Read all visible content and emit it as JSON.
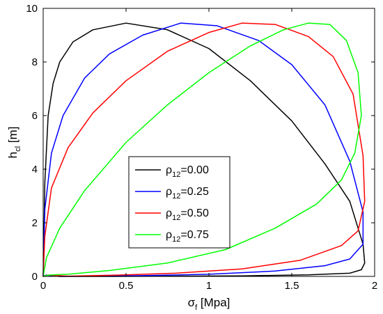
{
  "chart_data": {
    "type": "line",
    "xlabel": {
      "base": "σ",
      "sub": "f",
      "rest": " [Mpa]"
    },
    "ylabel": {
      "base": "h",
      "sub": "cl",
      "rest": " [m]"
    },
    "xlim": [
      0,
      2
    ],
    "ylim": [
      0,
      10
    ],
    "xticks": [
      "0",
      "0.5",
      "1",
      "1.5",
      "2"
    ],
    "xtick_values": [
      0,
      0.5,
      1,
      1.5,
      2
    ],
    "yticks": [
      "0",
      "2",
      "4",
      "6",
      "8",
      "10"
    ],
    "ytick_values": [
      0,
      2,
      4,
      6,
      8,
      10
    ],
    "grid": false,
    "legend_position": "lower-center",
    "series": [
      {
        "name": {
          "base": "ρ",
          "sub": "12",
          "rest": "=0.00"
        },
        "color": "#000000",
        "x": [
          0.0,
          0.01,
          0.03,
          0.06,
          0.1,
          0.18,
          0.3,
          0.5,
          0.75,
          1.0,
          1.25,
          1.5,
          1.7,
          1.85,
          1.93,
          1.94,
          1.92,
          1.85,
          1.6,
          1.2,
          0.8,
          0.4,
          0.1,
          0.02,
          0.0
        ],
        "y": [
          0.0,
          3.5,
          6.0,
          7.2,
          8.0,
          8.75,
          9.2,
          9.45,
          9.2,
          8.5,
          7.3,
          5.8,
          4.2,
          2.8,
          1.2,
          0.5,
          0.25,
          0.12,
          0.06,
          0.02,
          0.01,
          0.0,
          0.0,
          0.05,
          0.0
        ]
      },
      {
        "name": {
          "base": "ρ",
          "sub": "12",
          "rest": "=0.25"
        },
        "color": "#0000ff",
        "x": [
          0.0,
          0.01,
          0.05,
          0.12,
          0.25,
          0.4,
          0.6,
          0.83,
          1.05,
          1.3,
          1.5,
          1.7,
          1.85,
          1.93,
          1.93,
          1.85,
          1.7,
          1.4,
          1.0,
          0.6,
          0.3,
          0.1,
          0.02,
          0.0
        ],
        "y": [
          0.0,
          2.5,
          4.6,
          6.0,
          7.4,
          8.3,
          9.0,
          9.45,
          9.35,
          8.8,
          7.9,
          6.4,
          4.3,
          2.4,
          1.2,
          0.65,
          0.4,
          0.2,
          0.08,
          0.03,
          0.01,
          0.0,
          0.05,
          0.0
        ]
      },
      {
        "name": {
          "base": "ρ",
          "sub": "12",
          "rest": "=0.50"
        },
        "color": "#ff0000",
        "x": [
          0.0,
          0.01,
          0.05,
          0.15,
          0.3,
          0.5,
          0.75,
          1.0,
          1.2,
          1.4,
          1.6,
          1.75,
          1.87,
          1.93,
          1.94,
          1.9,
          1.8,
          1.55,
          1.2,
          0.8,
          0.45,
          0.15,
          0.03,
          0.0
        ],
        "y": [
          0.0,
          1.5,
          3.3,
          4.8,
          6.1,
          7.3,
          8.4,
          9.1,
          9.45,
          9.4,
          8.95,
          8.2,
          6.8,
          4.5,
          2.8,
          1.7,
          1.15,
          0.6,
          0.28,
          0.12,
          0.05,
          0.01,
          0.05,
          0.0
        ]
      },
      {
        "name": {
          "base": "ρ",
          "sub": "12",
          "rest": "=0.75"
        },
        "color": "#00ff00",
        "x": [
          0.0,
          0.02,
          0.1,
          0.25,
          0.5,
          0.75,
          1.0,
          1.25,
          1.45,
          1.6,
          1.73,
          1.83,
          1.9,
          1.92,
          1.88,
          1.8,
          1.65,
          1.4,
          1.1,
          0.75,
          0.4,
          0.15,
          0.03,
          0.0
        ],
        "y": [
          0.0,
          0.7,
          1.8,
          3.2,
          5.0,
          6.4,
          7.6,
          8.6,
          9.2,
          9.45,
          9.4,
          8.8,
          7.6,
          6.0,
          4.6,
          3.6,
          2.7,
          1.8,
          1.0,
          0.5,
          0.22,
          0.08,
          0.05,
          0.0
        ]
      }
    ]
  }
}
